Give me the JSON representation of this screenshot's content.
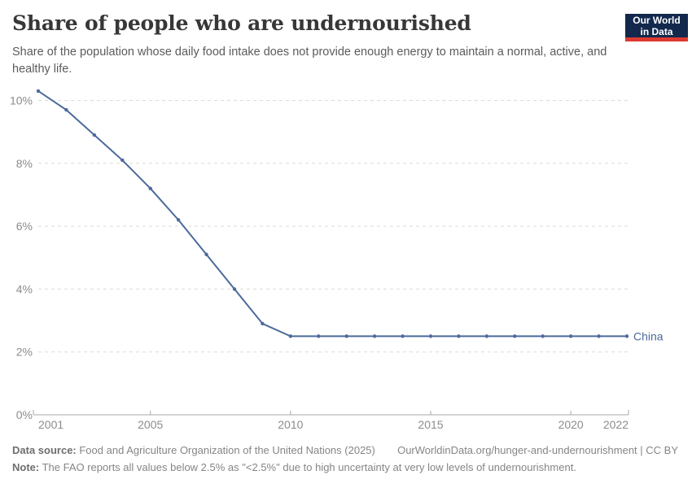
{
  "header": {
    "title": "Share of people who are undernourished",
    "subtitle": "Share of the population whose daily food intake does not provide enough energy to maintain a normal, active, and healthy life.",
    "logo": {
      "line1": "Our World",
      "line2": "in Data",
      "bg_color": "#12294d",
      "accent_color": "#dc3a30"
    }
  },
  "chart_data": {
    "type": "line",
    "title": "Share of people who are undernourished",
    "x": [
      2001,
      2002,
      2003,
      2004,
      2005,
      2006,
      2007,
      2008,
      2009,
      2010,
      2011,
      2012,
      2013,
      2014,
      2015,
      2016,
      2017,
      2018,
      2019,
      2020,
      2021,
      2022
    ],
    "series": [
      {
        "name": "China",
        "color": "#4c6a9c",
        "values": [
          10.3,
          9.7,
          8.9,
          8.1,
          7.2,
          6.2,
          5.1,
          4.0,
          2.9,
          2.5,
          2.5,
          2.5,
          2.5,
          2.5,
          2.5,
          2.5,
          2.5,
          2.5,
          2.5,
          2.5,
          2.5,
          2.5
        ]
      }
    ],
    "xlabel": "",
    "ylabel": "",
    "ylim": [
      0,
      10.5
    ],
    "yticks": [
      0,
      2,
      4,
      6,
      8,
      10
    ],
    "ytick_suffix": "%",
    "xticks": [
      2001,
      2005,
      2010,
      2015,
      2020,
      2022
    ],
    "grid": "horizontal-dashed",
    "legend_position": "end-of-line",
    "colors": {
      "grid_color": "#dcdcdc",
      "axis_color": "#a9a9a9",
      "tick_label_color": "#8c8c8c"
    }
  },
  "footer": {
    "datasource_label": "Data source:",
    "datasource_text": " Food and Agriculture Organization of the United Nations (2025)",
    "link_text": "OurWorldinData.org/hunger-and-undernourishment | CC BY",
    "note_label": "Note:",
    "note_text": " The FAO reports all values below 2.5% as \"<2.5%\" due to high uncertainty at very low levels of undernourishment."
  }
}
